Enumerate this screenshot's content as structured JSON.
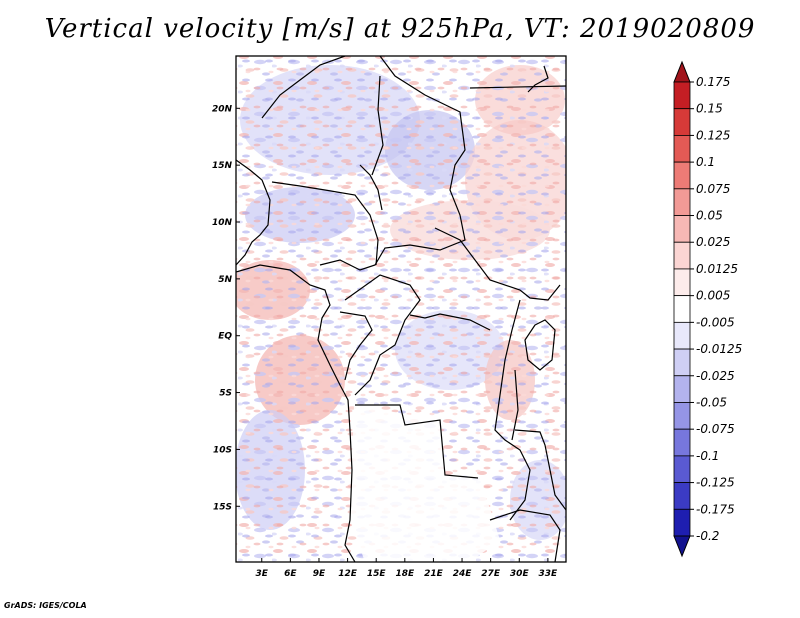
{
  "title": "Vertical velocity [m/s] at 925hPa, VT: 2019020809",
  "footer": "GrADS: IGES/COLA",
  "map": {
    "lat_labels": [
      "20N",
      "15N",
      "10N",
      "5N",
      "EQ",
      "5S",
      "10S",
      "15S"
    ],
    "lat_values": [
      20,
      15,
      10,
      5,
      0,
      -5,
      -10,
      -15
    ],
    "lon_labels": [
      "3E",
      "6E",
      "9E",
      "12E",
      "15E",
      "18E",
      "21E",
      "24E",
      "27E",
      "30E",
      "33E"
    ],
    "lon_values": [
      3,
      6,
      9,
      12,
      15,
      18,
      21,
      24,
      27,
      30,
      33
    ],
    "lon_range": [
      0.3,
      34.9
    ],
    "lat_range": [
      -19.9,
      24.6
    ]
  },
  "colorbar": {
    "labels": [
      "0.175",
      "0.15",
      "0.125",
      "0.1",
      "0.075",
      "0.05",
      "0.025",
      "0.0125",
      "0.005",
      "-0.005",
      "-0.0125",
      "-0.025",
      "-0.05",
      "-0.075",
      "-0.1",
      "-0.125",
      "-0.175",
      "-0.2"
    ],
    "colors": [
      "#a1141b",
      "#c41e24",
      "#d63a38",
      "#e35a55",
      "#ed7b76",
      "#f29a96",
      "#f7b8b5",
      "#fbd5d3",
      "#fdeceb",
      "#ffffff",
      "#e8e8fb",
      "#cfcff5",
      "#b3b3ee",
      "#9595e6",
      "#7777dd",
      "#5a5ad2",
      "#3b3bc4",
      "#1e1eb0",
      "#12128f"
    ]
  }
}
